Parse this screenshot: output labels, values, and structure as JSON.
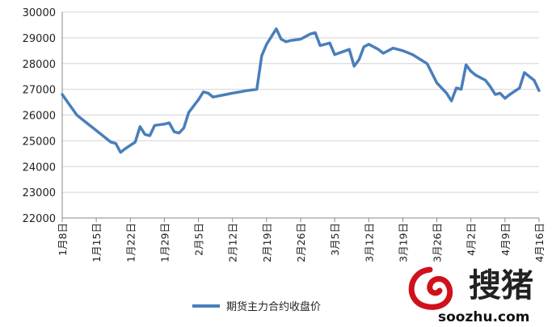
{
  "chart_data": {
    "type": "line",
    "title": "",
    "xlabel": "",
    "ylabel": "",
    "ylim": [
      22000,
      30000
    ],
    "yticks": [
      22000,
      23000,
      24000,
      25000,
      26000,
      27000,
      28000,
      29000,
      30000
    ],
    "ytick_labels": [
      "22000",
      "23000",
      "24000",
      "25000",
      "26000",
      "27000",
      "28000",
      "29000",
      "30000"
    ],
    "x_date_range": [
      "1月8日",
      "4月16日"
    ],
    "xtick_labels": [
      "1月8日",
      "1月15日",
      "1月22日",
      "1月29日",
      "2月5日",
      "2月12日",
      "2月19日",
      "2月26日",
      "3月5日",
      "3月12日",
      "3月19日",
      "3月26日",
      "4月2日",
      "4月9日",
      "4月16日"
    ],
    "grid": true,
    "legend": "bottom",
    "series": [
      {
        "name": "期货主力合约收盘价",
        "color": "#4a7ebb",
        "points": [
          [
            0,
            26800
          ],
          [
            1.5,
            26400
          ],
          [
            3,
            26000
          ],
          [
            5,
            25700
          ],
          [
            8,
            25250
          ],
          [
            10,
            24950
          ],
          [
            11,
            24900
          ],
          [
            12,
            24550
          ],
          [
            13,
            24700
          ],
          [
            15,
            24950
          ],
          [
            16,
            25550
          ],
          [
            17,
            25250
          ],
          [
            18,
            25200
          ],
          [
            19,
            25600
          ],
          [
            21,
            25650
          ],
          [
            22,
            25700
          ],
          [
            23,
            25350
          ],
          [
            24,
            25300
          ],
          [
            25,
            25500
          ],
          [
            26,
            26100
          ],
          [
            28,
            26600
          ],
          [
            29,
            26900
          ],
          [
            30,
            26850
          ],
          [
            31,
            26700
          ],
          [
            35,
            26850
          ],
          [
            38,
            26950
          ],
          [
            40,
            27000
          ],
          [
            41,
            28300
          ],
          [
            42,
            28750
          ],
          [
            44,
            29350
          ],
          [
            45,
            28950
          ],
          [
            46,
            28850
          ],
          [
            47,
            28900
          ],
          [
            49,
            28950
          ],
          [
            51,
            29150
          ],
          [
            52,
            29200
          ],
          [
            53,
            28700
          ],
          [
            55,
            28800
          ],
          [
            56,
            28350
          ],
          [
            59,
            28550
          ],
          [
            60,
            27900
          ],
          [
            61,
            28150
          ],
          [
            62,
            28650
          ],
          [
            63,
            28750
          ],
          [
            65,
            28550
          ],
          [
            66,
            28400
          ],
          [
            68,
            28600
          ],
          [
            70,
            28500
          ],
          [
            72,
            28350
          ],
          [
            75,
            28000
          ],
          [
            77,
            27250
          ],
          [
            79,
            26850
          ],
          [
            80,
            26550
          ],
          [
            81,
            27050
          ],
          [
            82,
            27000
          ],
          [
            83,
            27950
          ],
          [
            84,
            27700
          ],
          [
            85,
            27550
          ],
          [
            87,
            27350
          ],
          [
            88,
            27100
          ],
          [
            89,
            26800
          ],
          [
            90,
            26850
          ],
          [
            91,
            26650
          ],
          [
            92,
            26800
          ],
          [
            94,
            27050
          ],
          [
            95,
            27650
          ],
          [
            97,
            27350
          ],
          [
            98,
            26950
          ]
        ]
      }
    ]
  },
  "watermark": {
    "logo_icon": "swirl-logo-icon",
    "brand_text": "搜猪",
    "url_text": "soozhu.com",
    "color": "#d0111b"
  }
}
